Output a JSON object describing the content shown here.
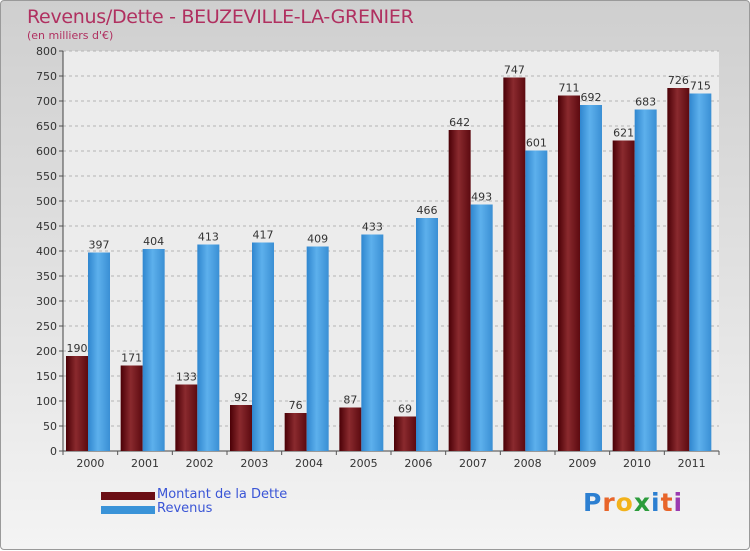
{
  "chart_data": {
    "type": "bar",
    "title": "Revenus/Dette - BEUZEVILLE-LA-GRENIER",
    "subtitle": "(en milliers d'€)",
    "categories": [
      "2000",
      "2001",
      "2002",
      "2003",
      "2004",
      "2005",
      "2006",
      "2007",
      "2008",
      "2009",
      "2010",
      "2011"
    ],
    "series": [
      {
        "name": "Montant de la Dette",
        "color": "#6b0e14",
        "values": [
          190,
          171,
          133,
          92,
          76,
          87,
          69,
          642,
          747,
          711,
          621,
          726
        ]
      },
      {
        "name": "Revenus",
        "color": "#3a93d8",
        "values": [
          397,
          404,
          413,
          417,
          409,
          433,
          466,
          493,
          601,
          692,
          683,
          715
        ]
      }
    ],
    "ylim": [
      0,
      800
    ],
    "yticks": [
      0,
      50,
      100,
      150,
      200,
      250,
      300,
      350,
      400,
      450,
      500,
      550,
      600,
      650,
      700,
      750,
      800
    ],
    "grid": "horizontal dashed",
    "legend_position": "bottom-left",
    "logo_text": "Proxiti"
  }
}
